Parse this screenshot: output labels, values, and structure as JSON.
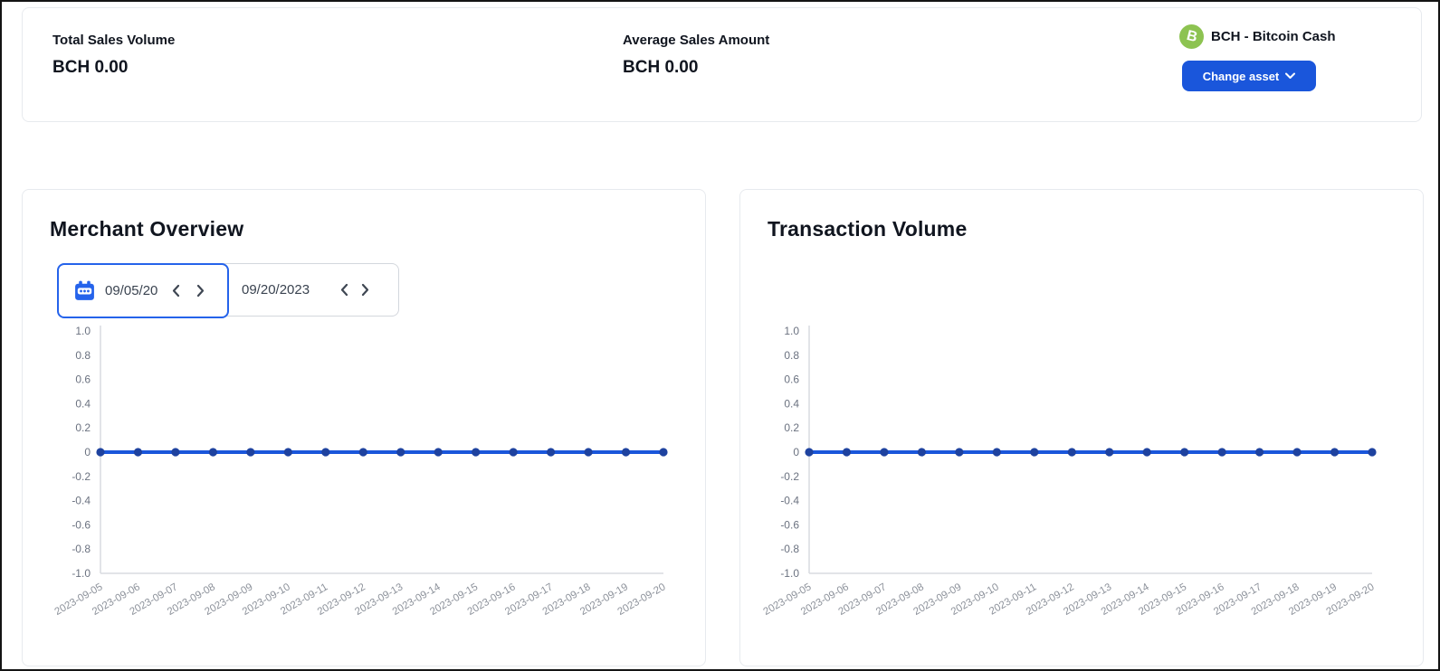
{
  "topbar": {
    "stats": [
      {
        "label": "Total Sales Volume",
        "value": "BCH 0.00"
      },
      {
        "label": "Average Sales Amount",
        "value": "BCH 0.00"
      }
    ],
    "asset": {
      "icon": "bch-coin-icon",
      "icon_bg": "#8dc351",
      "icon_letter": "B",
      "name": "BCH - Bitcoin Cash",
      "button_label": "Change asset",
      "button_bg": "#1a56db"
    }
  },
  "date_picker": {
    "start_value": "09/05/20",
    "end_value": "09/20/2023",
    "focused_field": "start",
    "focus_border_color": "#2563eb",
    "calendar_icon_color": "#2563eb"
  },
  "chart_data": [
    {
      "type": "line",
      "title": "Merchant Overview",
      "x": [
        "2023-09-05",
        "2023-09-06",
        "2023-09-07",
        "2023-09-08",
        "2023-09-09",
        "2023-09-10",
        "2023-09-11",
        "2023-09-12",
        "2023-09-13",
        "2023-09-14",
        "2023-09-15",
        "2023-09-16",
        "2023-09-17",
        "2023-09-18",
        "2023-09-19",
        "2023-09-20"
      ],
      "series": [
        {
          "name": "Merchant Overview",
          "values": [
            0,
            0,
            0,
            0,
            0,
            0,
            0,
            0,
            0,
            0,
            0,
            0,
            0,
            0,
            0,
            0
          ]
        }
      ],
      "ylim": [
        -1.0,
        1.0
      ],
      "ytick_step": 0.2,
      "grid": false,
      "legend": "none",
      "xtick_rotation": -30,
      "line_color": "#1a56db",
      "marker_color": "#1e429f",
      "axis_color": "#d9dce1",
      "ytick_label_color": "#6b7280",
      "xtick_label_color": "#8d929b"
    },
    {
      "type": "line",
      "title": "Transaction Volume",
      "x": [
        "2023-09-05",
        "2023-09-06",
        "2023-09-07",
        "2023-09-08",
        "2023-09-09",
        "2023-09-10",
        "2023-09-11",
        "2023-09-12",
        "2023-09-13",
        "2023-09-14",
        "2023-09-15",
        "2023-09-16",
        "2023-09-17",
        "2023-09-18",
        "2023-09-19",
        "2023-09-20"
      ],
      "series": [
        {
          "name": "Transaction Volume",
          "values": [
            0,
            0,
            0,
            0,
            0,
            0,
            0,
            0,
            0,
            0,
            0,
            0,
            0,
            0,
            0,
            0
          ]
        }
      ],
      "ylim": [
        -1.0,
        1.0
      ],
      "ytick_step": 0.2,
      "grid": false,
      "legend": "none",
      "xtick_rotation": -30,
      "line_color": "#1a56db",
      "marker_color": "#1e429f",
      "axis_color": "#d9dce1",
      "ytick_label_color": "#6b7280",
      "xtick_label_color": "#8d929b"
    }
  ]
}
